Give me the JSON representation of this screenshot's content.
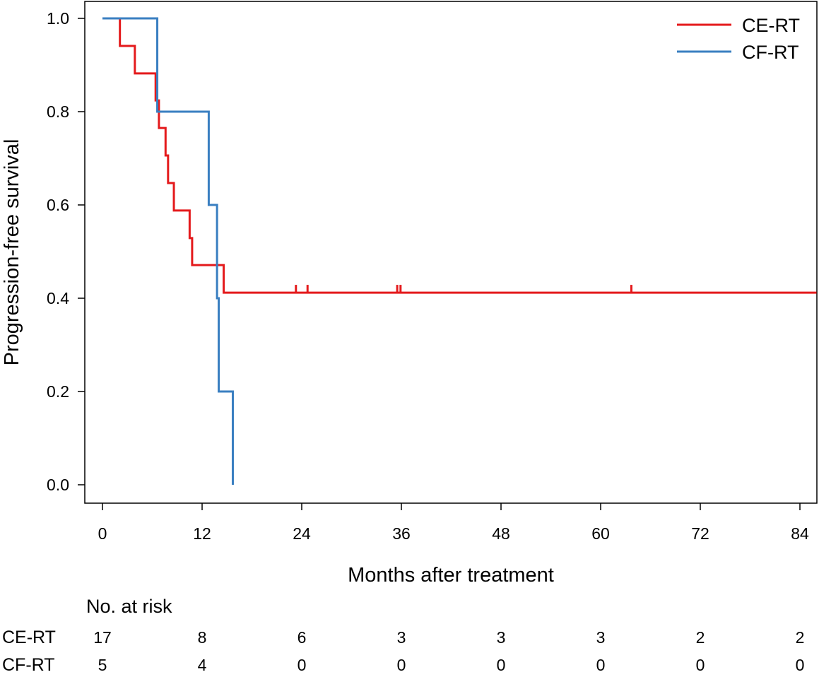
{
  "chart_data": {
    "type": "line",
    "subtype": "kaplan-meier step",
    "title": "",
    "xlabel": "Months after treatment",
    "ylabel": "Progression-free survival",
    "xlim": [
      -1,
      86
    ],
    "ylim": [
      -0.04,
      1.04
    ],
    "xticks": [
      0,
      12,
      24,
      36,
      48,
      60,
      72,
      84
    ],
    "yticks": [
      0.0,
      0.2,
      0.4,
      0.6,
      0.8,
      1.0
    ],
    "ytick_labels": [
      "0.0",
      "0.2",
      "0.4",
      "0.6",
      "0.8",
      "1.0"
    ],
    "grid": false,
    "legend_position": "top-right",
    "series": [
      {
        "name": "CE-RT",
        "color": "#e41a1c",
        "steps": [
          [
            0,
            1.0
          ],
          [
            2.1,
            0.941
          ],
          [
            3.9,
            0.882
          ],
          [
            6.4,
            0.824
          ],
          [
            6.8,
            0.765
          ],
          [
            7.6,
            0.706
          ],
          [
            7.9,
            0.647
          ],
          [
            8.6,
            0.588
          ],
          [
            10.5,
            0.529
          ],
          [
            10.8,
            0.471
          ],
          [
            14.6,
            0.412
          ],
          [
            86,
            0.412
          ]
        ],
        "censor_x": [
          23.3,
          24.7,
          35.5,
          35.9,
          63.7
        ]
      },
      {
        "name": "CF-RT",
        "color": "#3a7fc1",
        "steps": [
          [
            0,
            1.0
          ],
          [
            6.6,
            0.8
          ],
          [
            12.8,
            0.6
          ],
          [
            13.8,
            0.4
          ],
          [
            14.0,
            0.2
          ],
          [
            15.7,
            0.0
          ]
        ],
        "censor_x": []
      }
    ],
    "risk_table": {
      "header": "No. at risk",
      "rows": [
        {
          "label": "CE-RT",
          "values": [
            "17",
            "8",
            "6",
            "3",
            "3",
            "3",
            "2",
            "2"
          ]
        },
        {
          "label": "CF-RT",
          "values": [
            "5",
            "4",
            "0",
            "0",
            "0",
            "0",
            "0",
            "0"
          ]
        }
      ]
    }
  }
}
